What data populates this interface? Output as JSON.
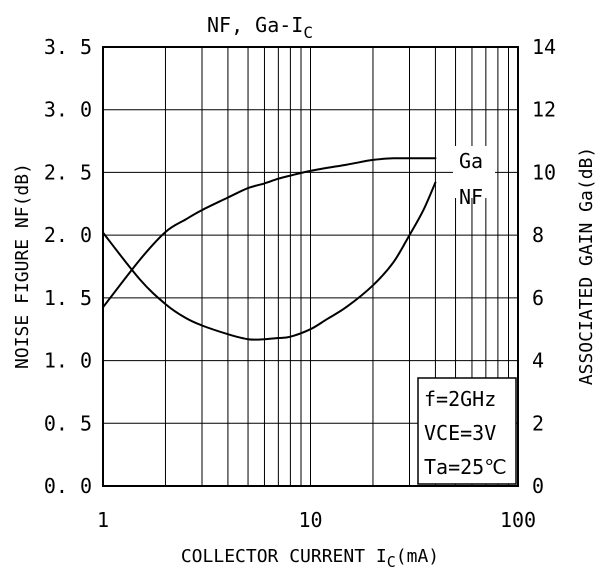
{
  "chart_data": {
    "type": "line",
    "title": "NF, Ga-I",
    "title_subscript": "C",
    "xlabel": "COLLECTOR CURRENT I",
    "xlabel_subscript": "C",
    "xlabel_unit": "(mA)",
    "ylabel_left": "NOISE FIGURE NF(dB)",
    "ylabel_right": "ASSOCIATED GAIN Ga(dB)",
    "x_scale": "log",
    "xlim": [
      1,
      100
    ],
    "x_ticks": [
      "1",
      "10",
      "100"
    ],
    "ylim_left": [
      0,
      3.5
    ],
    "y_ticks_left": [
      "0. 0",
      "0. 5",
      "1. 0",
      "1. 5",
      "2. 0",
      "2. 5",
      "3. 0",
      "3. 5"
    ],
    "ylim_right": [
      0,
      14
    ],
    "y_ticks_right": [
      "0",
      "2",
      "4",
      "6",
      "8",
      "10",
      "12",
      "14"
    ],
    "grid": true,
    "series": [
      {
        "name": "Ga",
        "axis": "right",
        "x": [
          1,
          1.5,
          2,
          2.5,
          3,
          4,
          5,
          6,
          7,
          8,
          10,
          15,
          20,
          25,
          30,
          40
        ],
        "values": [
          5.7,
          7.2,
          8.1,
          8.5,
          8.8,
          9.2,
          9.5,
          9.65,
          9.8,
          9.9,
          10.05,
          10.25,
          10.4,
          10.45,
          10.45,
          10.45
        ]
      },
      {
        "name": "NF",
        "axis": "left",
        "x": [
          1,
          1.5,
          2,
          2.5,
          3,
          4,
          5,
          6,
          7,
          8,
          10,
          12,
          15,
          20,
          25,
          30,
          35,
          40
        ],
        "values": [
          2.02,
          1.65,
          1.45,
          1.34,
          1.28,
          1.21,
          1.17,
          1.17,
          1.18,
          1.19,
          1.25,
          1.33,
          1.43,
          1.6,
          1.78,
          2.0,
          2.2,
          2.42
        ]
      }
    ],
    "conditions": [
      "f=2GHz",
      "VCE=3V",
      "Ta=25℃"
    ],
    "conditions_position": "bottom-right"
  }
}
